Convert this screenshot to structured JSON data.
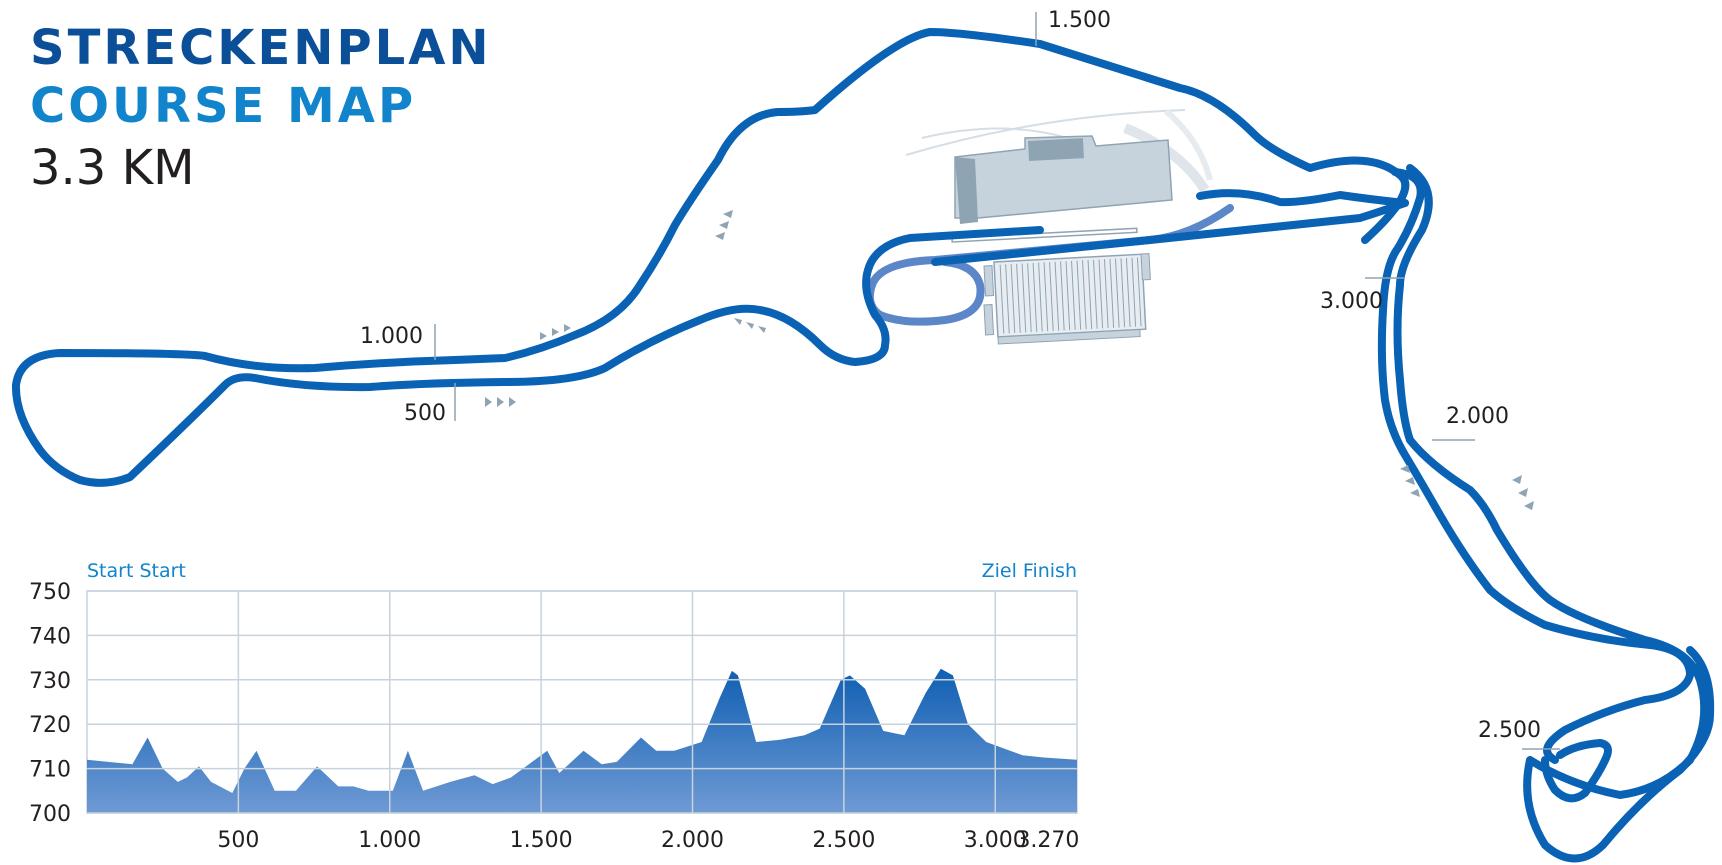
{
  "header": {
    "title_de": "STRECKENPLAN",
    "title_en": "COURSE MAP",
    "distance": "3.3 KM"
  },
  "map": {
    "km_markers": [
      "500",
      "1.000",
      "1.500",
      "2.000",
      "2.500",
      "3.000"
    ],
    "colors": {
      "track": "#0a62b5",
      "pit_lane": "#5b86c8",
      "building": "#c7d3dc",
      "arrow": "#8ea4b3"
    }
  },
  "chart_data": {
    "type": "area",
    "start_label": "Start Start",
    "finish_label": "Ziel Finish",
    "xlim": [
      0,
      3270
    ],
    "ylim": [
      700,
      750
    ],
    "yticks": [
      750,
      740,
      730,
      720,
      710,
      700
    ],
    "xticks": [
      "500",
      "1.000",
      "1.500",
      "2.000",
      "2.500",
      "3.000",
      "3.270"
    ],
    "grid": true,
    "series": [
      {
        "color": "#1565b8",
        "points": [
          [
            0,
            712
          ],
          [
            70,
            711.5
          ],
          [
            150,
            711
          ],
          [
            200,
            717
          ],
          [
            250,
            710
          ],
          [
            300,
            707
          ],
          [
            330,
            708
          ],
          [
            370,
            710.5
          ],
          [
            410,
            707
          ],
          [
            480,
            704.5
          ],
          [
            520,
            710
          ],
          [
            560,
            714
          ],
          [
            620,
            705
          ],
          [
            690,
            705
          ],
          [
            760,
            710.5
          ],
          [
            830,
            706
          ],
          [
            880,
            706
          ],
          [
            930,
            705
          ],
          [
            1010,
            705
          ],
          [
            1060,
            714
          ],
          [
            1110,
            705
          ],
          [
            1200,
            707
          ],
          [
            1280,
            708.5
          ],
          [
            1340,
            706.5
          ],
          [
            1400,
            708
          ],
          [
            1520,
            714
          ],
          [
            1560,
            709
          ],
          [
            1640,
            714
          ],
          [
            1700,
            711
          ],
          [
            1750,
            711.5
          ],
          [
            1830,
            717
          ],
          [
            1880,
            714
          ],
          [
            1940,
            714
          ],
          [
            2030,
            716
          ],
          [
            2090,
            726
          ],
          [
            2130,
            732
          ],
          [
            2150,
            731
          ],
          [
            2210,
            716
          ],
          [
            2290,
            716.5
          ],
          [
            2370,
            717.5
          ],
          [
            2420,
            719
          ],
          [
            2490,
            730
          ],
          [
            2520,
            731
          ],
          [
            2570,
            728
          ],
          [
            2630,
            718.5
          ],
          [
            2700,
            717.5
          ],
          [
            2770,
            727
          ],
          [
            2820,
            732.5
          ],
          [
            2860,
            731
          ],
          [
            2910,
            720
          ],
          [
            2970,
            716
          ],
          [
            3030,
            714.5
          ],
          [
            3090,
            713
          ],
          [
            3160,
            712.5
          ],
          [
            3270,
            712
          ]
        ]
      }
    ]
  }
}
